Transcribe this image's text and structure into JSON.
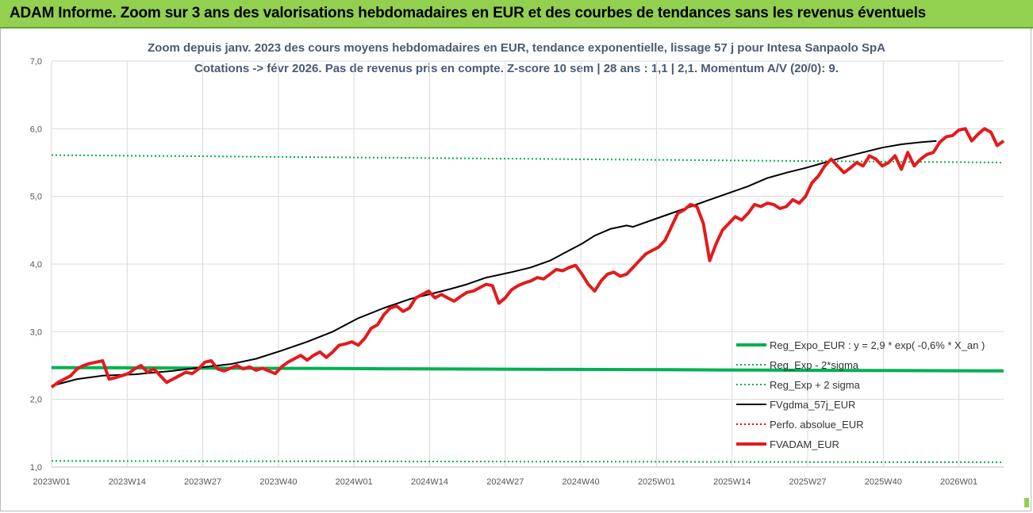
{
  "header": {
    "banner_title": "ADAM Informe. Zoom sur 3 ans des valorisations hebdomadaires en EUR et des courbes de tendances sans les revenus éventuels"
  },
  "colors": {
    "banner": "#92d050",
    "reg_expo": "#00b050",
    "fvgdma": "#000000",
    "perfo": "#ff0000",
    "fvadam": "#e31a1c",
    "grid": "#d9d9d9",
    "title": "#4a5a73"
  },
  "chart_data": {
    "type": "line",
    "title": "Zoom depuis janv. 2023 des cours moyens hebdomadaires en EUR, tendance exponentielle, lissage 57 j pour Intesa Sanpaolo SpA",
    "subtitle": "Cotations -> févr 2026.  Pas de revenus pris en compte. Z-score 10 sem | 28 ans : 1,1 | 2,1. Momentum A/V (20/0): 9.",
    "xlabel": "",
    "ylabel": "",
    "ylim": [
      1.0,
      7.0
    ],
    "yticks": [
      "1,0",
      "2,0",
      "3,0",
      "4,0",
      "5,0",
      "6,0",
      "7,0"
    ],
    "x_tick_labels": [
      "2023W01",
      "2023W14",
      "2023W27",
      "2023W40",
      "2024W01",
      "2024W14",
      "2024W27",
      "2024W40",
      "2025W01",
      "2025W14",
      "2025W27",
      "2025W40",
      "2026W01"
    ],
    "grid": true,
    "legend_position": "bottom-right",
    "n_weeks": 164,
    "series": [
      {
        "name": "Reg_Expo_EUR : y = 2,9 * exp( -0,6% *  X_an )",
        "style": "solid-thick",
        "color": "#00b050",
        "start": 2.47,
        "end": 2.42
      },
      {
        "name": "Reg_Exp - 2*sigma",
        "style": "dotted",
        "color": "#00b050",
        "start": 1.09,
        "end": 1.07
      },
      {
        "name": "Reg_Exp + 2 sigma",
        "style": "dotted",
        "color": "#00b050",
        "start": 5.61,
        "end": 5.5
      },
      {
        "name": "FVgdma_57j_EUR",
        "style": "solid",
        "color": "#000000",
        "points": [
          [
            0,
            2.2
          ],
          [
            8,
            2.3
          ],
          [
            16,
            2.35
          ],
          [
            26,
            2.37
          ],
          [
            38,
            2.42
          ],
          [
            48,
            2.48
          ],
          [
            56,
            2.52
          ],
          [
            64,
            2.6
          ],
          [
            72,
            2.72
          ],
          [
            80,
            2.85
          ],
          [
            88,
            3.0
          ],
          [
            96,
            3.2
          ],
          [
            104,
            3.35
          ],
          [
            112,
            3.48
          ],
          [
            118,
            3.55
          ],
          [
            124,
            3.62
          ],
          [
            130,
            3.7
          ],
          [
            136,
            3.8
          ],
          [
            144,
            3.88
          ],
          [
            150,
            3.95
          ],
          [
            156,
            4.05
          ],
          [
            162,
            4.2
          ],
          [
            166,
            4.3
          ],
          [
            170,
            4.42
          ],
          [
            175,
            4.52
          ],
          [
            180,
            4.57
          ],
          [
            182,
            4.55
          ],
          [
            188,
            4.65
          ],
          [
            194,
            4.75
          ],
          [
            200,
            4.85
          ],
          [
            206,
            4.95
          ],
          [
            212,
            5.05
          ],
          [
            218,
            5.15
          ],
          [
            224,
            5.27
          ],
          [
            230,
            5.35
          ],
          [
            236,
            5.42
          ],
          [
            242,
            5.5
          ],
          [
            248,
            5.58
          ],
          [
            254,
            5.65
          ],
          [
            260,
            5.72
          ],
          [
            266,
            5.77
          ],
          [
            272,
            5.8
          ],
          [
            277,
            5.82
          ]
        ]
      },
      {
        "name": "Perfo. absolue_EUR",
        "style": "dotted",
        "color": "#ff0000",
        "points": []
      },
      {
        "name": "FVADAM_EUR",
        "style": "solid-thick",
        "color": "#e31a1c",
        "points": [
          [
            0,
            2.18
          ],
          [
            2,
            2.25
          ],
          [
            4,
            2.3
          ],
          [
            6,
            2.35
          ],
          [
            8,
            2.45
          ],
          [
            10,
            2.5
          ],
          [
            12,
            2.53
          ],
          [
            14,
            2.55
          ],
          [
            16,
            2.57
          ],
          [
            18,
            2.3
          ],
          [
            20,
            2.32
          ],
          [
            22,
            2.35
          ],
          [
            24,
            2.38
          ],
          [
            26,
            2.45
          ],
          [
            28,
            2.5
          ],
          [
            30,
            2.4
          ],
          [
            32,
            2.45
          ],
          [
            34,
            2.35
          ],
          [
            36,
            2.25
          ],
          [
            38,
            2.3
          ],
          [
            40,
            2.35
          ],
          [
            42,
            2.4
          ],
          [
            44,
            2.38
          ],
          [
            46,
            2.45
          ],
          [
            48,
            2.55
          ],
          [
            50,
            2.57
          ],
          [
            52,
            2.45
          ],
          [
            54,
            2.42
          ],
          [
            56,
            2.46
          ],
          [
            58,
            2.5
          ],
          [
            60,
            2.45
          ],
          [
            62,
            2.48
          ],
          [
            64,
            2.43
          ],
          [
            66,
            2.46
          ],
          [
            68,
            2.42
          ],
          [
            70,
            2.38
          ],
          [
            72,
            2.48
          ],
          [
            74,
            2.55
          ],
          [
            76,
            2.6
          ],
          [
            78,
            2.65
          ],
          [
            80,
            2.58
          ],
          [
            82,
            2.65
          ],
          [
            84,
            2.7
          ],
          [
            86,
            2.62
          ],
          [
            88,
            2.7
          ],
          [
            90,
            2.8
          ],
          [
            92,
            2.82
          ],
          [
            94,
            2.85
          ],
          [
            96,
            2.8
          ],
          [
            98,
            2.9
          ],
          [
            100,
            3.05
          ],
          [
            102,
            3.1
          ],
          [
            104,
            3.25
          ],
          [
            106,
            3.35
          ],
          [
            108,
            3.38
          ],
          [
            110,
            3.3
          ],
          [
            112,
            3.35
          ],
          [
            114,
            3.5
          ],
          [
            116,
            3.55
          ],
          [
            118,
            3.6
          ],
          [
            120,
            3.5
          ],
          [
            122,
            3.55
          ],
          [
            124,
            3.5
          ],
          [
            126,
            3.45
          ],
          [
            128,
            3.52
          ],
          [
            130,
            3.58
          ],
          [
            132,
            3.6
          ],
          [
            134,
            3.65
          ],
          [
            136,
            3.7
          ],
          [
            138,
            3.68
          ],
          [
            140,
            3.42
          ],
          [
            142,
            3.5
          ],
          [
            144,
            3.62
          ],
          [
            146,
            3.68
          ],
          [
            148,
            3.72
          ],
          [
            150,
            3.75
          ],
          [
            152,
            3.8
          ],
          [
            154,
            3.78
          ],
          [
            156,
            3.85
          ],
          [
            158,
            3.92
          ],
          [
            160,
            3.9
          ],
          [
            162,
            3.95
          ],
          [
            164,
            3.98
          ],
          [
            166,
            3.85
          ],
          [
            168,
            3.7
          ],
          [
            170,
            3.6
          ],
          [
            172,
            3.75
          ],
          [
            174,
            3.85
          ],
          [
            176,
            3.88
          ],
          [
            178,
            3.82
          ],
          [
            180,
            3.85
          ],
          [
            182,
            3.95
          ],
          [
            184,
            4.05
          ],
          [
            186,
            4.15
          ],
          [
            188,
            4.2
          ],
          [
            190,
            4.25
          ],
          [
            192,
            4.35
          ],
          [
            194,
            4.55
          ],
          [
            196,
            4.75
          ],
          [
            198,
            4.8
          ],
          [
            200,
            4.88
          ],
          [
            202,
            4.85
          ],
          [
            204,
            4.6
          ],
          [
            206,
            4.05
          ],
          [
            208,
            4.3
          ],
          [
            210,
            4.5
          ],
          [
            212,
            4.6
          ],
          [
            214,
            4.7
          ],
          [
            216,
            4.65
          ],
          [
            218,
            4.75
          ],
          [
            220,
            4.88
          ],
          [
            222,
            4.85
          ],
          [
            224,
            4.9
          ],
          [
            226,
            4.88
          ],
          [
            228,
            4.82
          ],
          [
            230,
            4.85
          ],
          [
            232,
            4.95
          ],
          [
            234,
            4.9
          ],
          [
            236,
            5.0
          ],
          [
            238,
            5.2
          ],
          [
            240,
            5.3
          ],
          [
            242,
            5.45
          ],
          [
            244,
            5.55
          ],
          [
            246,
            5.45
          ],
          [
            248,
            5.35
          ],
          [
            250,
            5.42
          ],
          [
            252,
            5.5
          ],
          [
            254,
            5.45
          ],
          [
            256,
            5.6
          ],
          [
            258,
            5.55
          ],
          [
            260,
            5.45
          ],
          [
            262,
            5.5
          ],
          [
            264,
            5.6
          ],
          [
            266,
            5.4
          ],
          [
            268,
            5.65
          ],
          [
            270,
            5.45
          ],
          [
            272,
            5.55
          ],
          [
            274,
            5.62
          ],
          [
            276,
            5.65
          ],
          [
            278,
            5.8
          ],
          [
            280,
            5.88
          ],
          [
            282,
            5.9
          ],
          [
            284,
            5.98
          ],
          [
            286,
            6.0
          ],
          [
            288,
            5.82
          ],
          [
            290,
            5.92
          ],
          [
            292,
            6.0
          ],
          [
            294,
            5.95
          ],
          [
            296,
            5.75
          ],
          [
            298,
            5.82
          ]
        ]
      }
    ]
  }
}
